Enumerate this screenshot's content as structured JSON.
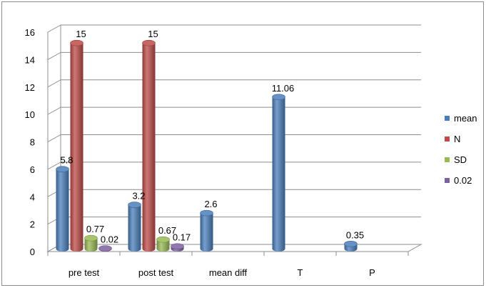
{
  "chart_data": {
    "type": "bar",
    "categories": [
      "pre test",
      "post test",
      "mean diff",
      "T",
      "P"
    ],
    "series": [
      {
        "name": "mean",
        "color": "#4a7ebb",
        "values": [
          5.8,
          3.2,
          2.6,
          11.06,
          0.35
        ],
        "labels": [
          "5.8",
          "3.2",
          "2.6",
          "11.06",
          "0.35"
        ]
      },
      {
        "name": "N",
        "color": "#be4b48",
        "values": [
          15,
          15,
          null,
          null,
          null
        ],
        "labels": [
          "15",
          "15",
          "",
          "",
          ""
        ]
      },
      {
        "name": "SD",
        "color": "#98b954",
        "values": [
          0.77,
          0.67,
          null,
          null,
          null
        ],
        "labels": [
          "0.77",
          "0.67",
          "",
          "",
          ""
        ]
      },
      {
        "name": "0.02",
        "color": "#7d60a0",
        "values": [
          0.02,
          0.17,
          null,
          null,
          null
        ],
        "labels": [
          "0.02",
          "0.17",
          "",
          "",
          ""
        ]
      }
    ],
    "ylim": [
      0,
      16
    ],
    "yticks": [
      0,
      2,
      4,
      6,
      8,
      10,
      12,
      14,
      16
    ],
    "grid": true,
    "legend_position": "right",
    "style": "3d-cylinder"
  }
}
